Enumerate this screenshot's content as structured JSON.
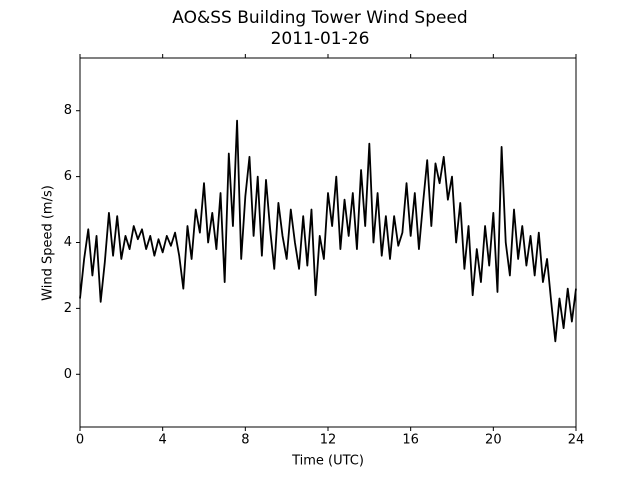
{
  "chart_data": {
    "type": "line",
    "title": "AO&SS Building Tower Wind Speed",
    "subtitle": "2011-01-26",
    "x_label": "Time (UTC)",
    "y_label": "Wind Speed (m/s)",
    "color": "#000000",
    "xlim": [
      0,
      24
    ],
    "xticks": [
      0,
      4,
      8,
      12,
      16,
      20,
      24
    ],
    "ylim": [
      -1.6,
      9.6
    ],
    "yticks": [
      0,
      2,
      4,
      6,
      8
    ],
    "x": [
      0,
      0.2,
      0.4,
      0.6,
      0.8,
      1,
      1.2,
      1.4,
      1.6,
      1.8,
      2,
      2.2,
      2.4,
      2.6,
      2.8,
      3,
      3.2,
      3.4,
      3.6,
      3.8,
      4,
      4.2,
      4.4,
      4.6,
      4.8,
      5,
      5.2,
      5.4,
      5.6,
      5.8,
      6,
      6.2,
      6.4,
      6.6,
      6.8,
      7,
      7.2,
      7.4,
      7.6,
      7.8,
      8,
      8.2,
      8.4,
      8.6,
      8.8,
      9,
      9.2,
      9.4,
      9.6,
      9.8,
      10,
      10.2,
      10.4,
      10.6,
      10.8,
      11,
      11.2,
      11.4,
      11.6,
      11.8,
      12,
      12.2,
      12.4,
      12.6,
      12.8,
      13,
      13.2,
      13.4,
      13.6,
      13.8,
      14,
      14.2,
      14.4,
      14.6,
      14.8,
      15,
      15.2,
      15.4,
      15.6,
      15.8,
      16,
      16.2,
      16.4,
      16.6,
      16.8,
      17,
      17.2,
      17.4,
      17.6,
      17.8,
      18,
      18.2,
      18.4,
      18.6,
      18.8,
      19,
      19.2,
      19.4,
      19.6,
      19.8,
      20,
      20.2,
      20.4,
      20.6,
      20.8,
      21,
      21.2,
      21.4,
      21.6,
      21.8,
      22,
      22.2,
      22.4,
      22.6,
      22.8,
      23,
      23.2,
      23.4,
      23.6,
      23.8,
      24
    ],
    "values": [
      2.3,
      3.5,
      4.4,
      3.0,
      4.2,
      2.2,
      3.4,
      4.9,
      3.6,
      4.8,
      3.5,
      4.2,
      3.8,
      4.5,
      4.1,
      4.4,
      3.8,
      4.2,
      3.6,
      4.1,
      3.7,
      4.2,
      3.9,
      4.3,
      3.6,
      2.6,
      4.5,
      3.5,
      5.0,
      4.3,
      5.8,
      4.0,
      4.9,
      3.8,
      5.5,
      2.8,
      6.7,
      4.5,
      7.7,
      3.5,
      5.4,
      6.6,
      4.2,
      6.0,
      3.6,
      5.9,
      4.4,
      3.2,
      5.2,
      4.2,
      3.5,
      5.0,
      4.0,
      3.2,
      4.8,
      3.3,
      5.0,
      2.4,
      4.2,
      3.5,
      5.5,
      4.5,
      6.0,
      3.8,
      5.3,
      4.2,
      5.5,
      3.8,
      6.2,
      4.5,
      7.0,
      4.0,
      5.5,
      3.6,
      4.8,
      3.5,
      4.8,
      3.9,
      4.3,
      5.8,
      4.2,
      5.5,
      3.8,
      5.2,
      6.5,
      4.5,
      6.4,
      5.8,
      6.6,
      5.3,
      6.0,
      4.0,
      5.2,
      3.2,
      4.5,
      2.4,
      3.8,
      2.8,
      4.5,
      3.3,
      4.9,
      2.5,
      6.9,
      4.0,
      3.0,
      5.0,
      3.5,
      4.5,
      3.3,
      4.2,
      3.0,
      4.3,
      2.8,
      3.5,
      2.2,
      1.0,
      2.3,
      1.4,
      2.6,
      1.6,
      2.6
    ]
  }
}
